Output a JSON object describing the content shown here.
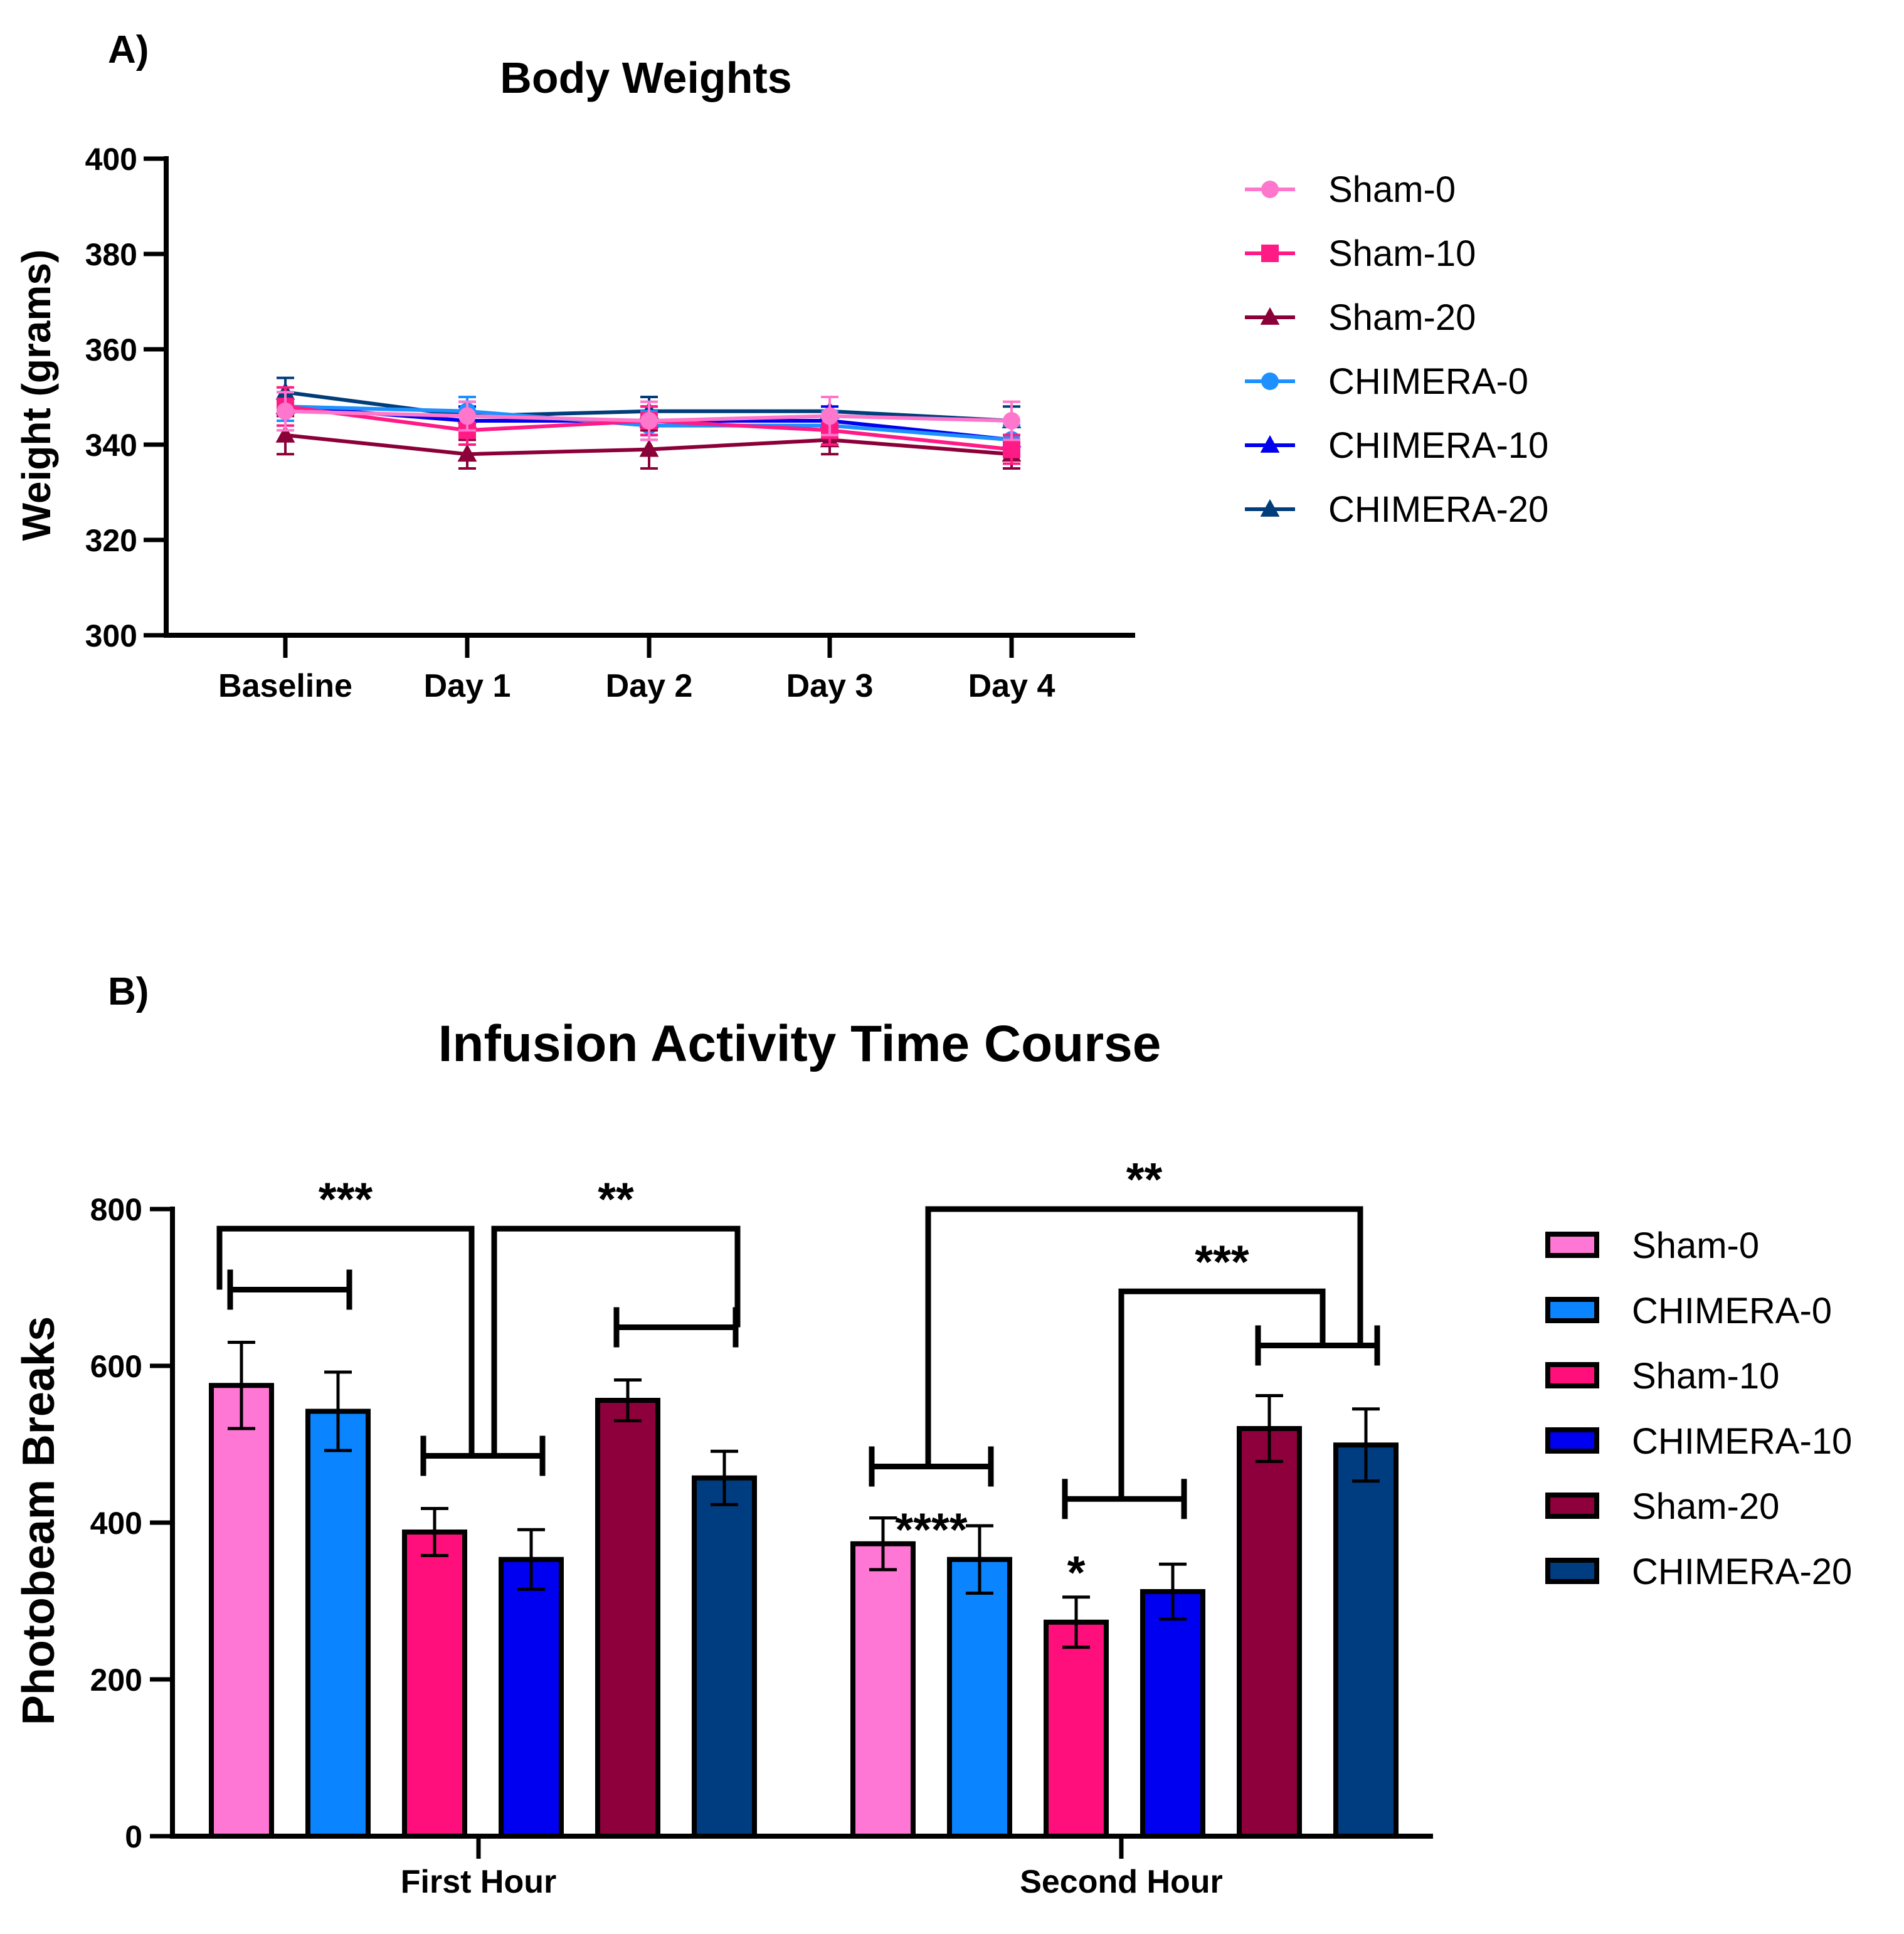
{
  "panels": {
    "a": "A)",
    "b": "B)"
  },
  "chart_data": [
    {
      "type": "line",
      "title": "Body Weights",
      "xlabel": "",
      "ylabel": "Weight (grams)",
      "ylim": [
        300,
        400
      ],
      "yticks": [
        300,
        320,
        340,
        360,
        380,
        400
      ],
      "categories": [
        "Baseline",
        "Day 1",
        "Day 2",
        "Day 3",
        "Day 4"
      ],
      "legend_position": "right",
      "series": [
        {
          "name": "Sham-0",
          "color": "#ff77cc",
          "marker": "circle",
          "values": [
            347,
            346,
            345,
            346,
            345
          ],
          "errors": [
            4,
            3,
            4,
            4,
            4
          ]
        },
        {
          "name": "Sham-10",
          "color": "#ff1a85",
          "marker": "square",
          "values": [
            348,
            343,
            345,
            343,
            339
          ],
          "errors": [
            4,
            3,
            3,
            3,
            3
          ]
        },
        {
          "name": "Sham-20",
          "color": "#8b0038",
          "marker": "triangle",
          "values": [
            342,
            338,
            339,
            341,
            338
          ],
          "errors": [
            4,
            3,
            4,
            3,
            3
          ]
        },
        {
          "name": "CHIMERA-0",
          "color": "#1e90ff",
          "marker": "circle",
          "values": [
            348,
            347,
            344,
            344,
            341
          ],
          "errors": [
            3,
            3,
            3,
            3,
            3
          ]
        },
        {
          "name": "CHIMERA-10",
          "color": "#0000ee",
          "marker": "triangle",
          "values": [
            348,
            345,
            345,
            345,
            341
          ],
          "errors": [
            3,
            3,
            3,
            3,
            3
          ]
        },
        {
          "name": "CHIMERA-20",
          "color": "#003d7a",
          "marker": "triangle",
          "values": [
            351,
            346,
            347,
            347,
            345
          ],
          "errors": [
            3,
            3,
            3,
            3,
            3
          ]
        }
      ]
    },
    {
      "type": "bar",
      "title": "Infusion Activity Time Course",
      "xlabel": "",
      "ylabel": "Photobeam Breaks",
      "ylim": [
        0,
        800
      ],
      "yticks": [
        0,
        200,
        400,
        600,
        800
      ],
      "categories": [
        "First Hour",
        "Second Hour"
      ],
      "legend_position": "right",
      "series": [
        {
          "name": "Sham-0",
          "color": "#ff77d4",
          "values": [
            575,
            373
          ],
          "errors": [
            55,
            33
          ]
        },
        {
          "name": "CHIMERA-0",
          "color": "#0a84ff",
          "values": [
            542,
            353
          ],
          "errors": [
            50,
            43
          ]
        },
        {
          "name": "Sham-10",
          "color": "#ff0f7b",
          "values": [
            388,
            273
          ],
          "errors": [
            30,
            32
          ]
        },
        {
          "name": "CHIMERA-10",
          "color": "#0000f0",
          "values": [
            353,
            312
          ],
          "errors": [
            38,
            35
          ]
        },
        {
          "name": "Sham-20",
          "color": "#8e003c",
          "values": [
            556,
            520
          ],
          "errors": [
            26,
            42
          ]
        },
        {
          "name": "CHIMERA-20",
          "color": "#003c80",
          "values": [
            457,
            499
          ],
          "errors": [
            34,
            46
          ]
        }
      ],
      "annotations": [
        {
          "text": "***",
          "group": 0,
          "left": [
            0,
            1
          ],
          "right": [
            2,
            3
          ]
        },
        {
          "text": "**",
          "group": 0,
          "left": [
            2,
            3
          ],
          "right": [
            4,
            5
          ]
        },
        {
          "text": "**",
          "group": 1,
          "left": [
            0,
            1
          ],
          "right": [
            4,
            5
          ]
        },
        {
          "text": "***",
          "group": 1,
          "left": [
            2,
            3
          ],
          "right": [
            4,
            5
          ]
        },
        {
          "text": "****",
          "group": 1,
          "above_bar": 0
        },
        {
          "text": "*",
          "group": 1,
          "above_bar": 2
        }
      ]
    }
  ]
}
